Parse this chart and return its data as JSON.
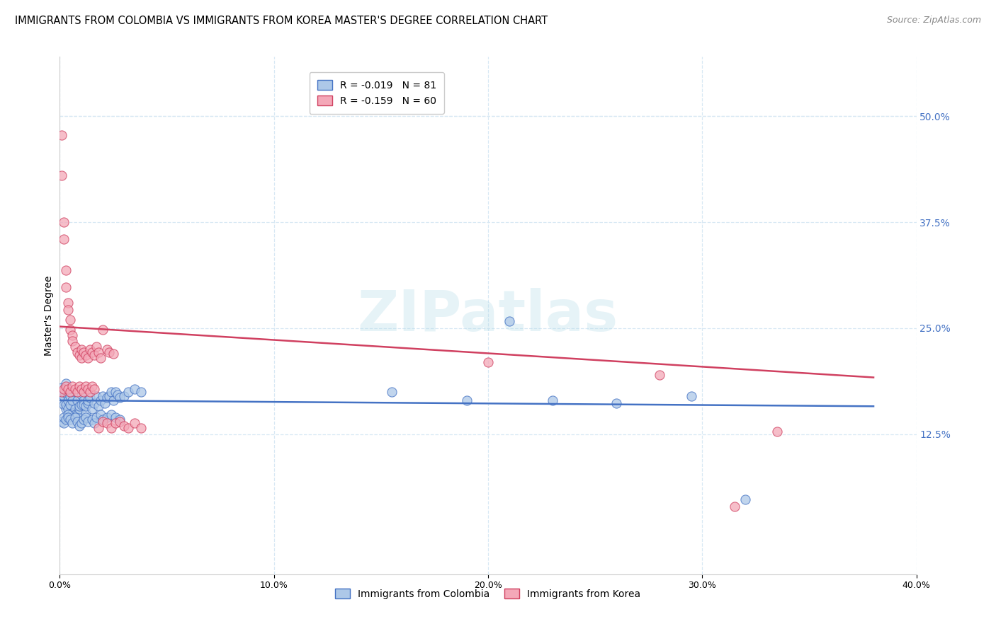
{
  "title": "IMMIGRANTS FROM COLOMBIA VS IMMIGRANTS FROM KOREA MASTER'S DEGREE CORRELATION CHART",
  "source": "Source: ZipAtlas.com",
  "ylabel": "Master's Degree",
  "colombia_R": -0.019,
  "colombia_N": 81,
  "korea_R": -0.159,
  "korea_N": 60,
  "colombia_color": "#adc8e8",
  "korea_color": "#f4a8b8",
  "colombia_line_color": "#4472c4",
  "korea_line_color": "#d04060",
  "right_axis_color": "#4472c4",
  "xmin": 0.0,
  "xmax": 0.4,
  "ymin": -0.04,
  "ymax": 0.57,
  "right_yticks": [
    0.125,
    0.25,
    0.375,
    0.5
  ],
  "right_yticklabels": [
    "12.5%",
    "25.0%",
    "37.5%",
    "50.0%"
  ],
  "grid_color": "#d8e8f4",
  "colombia_x": [
    0.001,
    0.001,
    0.001,
    0.002,
    0.002,
    0.002,
    0.003,
    0.003,
    0.003,
    0.004,
    0.004,
    0.004,
    0.005,
    0.005,
    0.005,
    0.006,
    0.006,
    0.007,
    0.007,
    0.008,
    0.008,
    0.009,
    0.009,
    0.01,
    0.01,
    0.011,
    0.011,
    0.012,
    0.012,
    0.013,
    0.013,
    0.014,
    0.015,
    0.016,
    0.017,
    0.018,
    0.019,
    0.02,
    0.021,
    0.022,
    0.023,
    0.024,
    0.025,
    0.026,
    0.027,
    0.028,
    0.03,
    0.032,
    0.035,
    0.038,
    0.001,
    0.002,
    0.002,
    0.003,
    0.004,
    0.004,
    0.005,
    0.006,
    0.007,
    0.008,
    0.009,
    0.01,
    0.011,
    0.012,
    0.013,
    0.015,
    0.016,
    0.017,
    0.019,
    0.02,
    0.022,
    0.024,
    0.026,
    0.028,
    0.155,
    0.19,
    0.21,
    0.23,
    0.26,
    0.295,
    0.32
  ],
  "colombia_y": [
    0.175,
    0.18,
    0.165,
    0.17,
    0.16,
    0.175,
    0.185,
    0.155,
    0.16,
    0.17,
    0.165,
    0.155,
    0.175,
    0.16,
    0.17,
    0.15,
    0.165,
    0.155,
    0.148,
    0.165,
    0.148,
    0.155,
    0.158,
    0.16,
    0.172,
    0.165,
    0.16,
    0.15,
    0.158,
    0.162,
    0.165,
    0.168,
    0.155,
    0.162,
    0.17,
    0.158,
    0.165,
    0.17,
    0.162,
    0.168,
    0.17,
    0.175,
    0.165,
    0.175,
    0.172,
    0.168,
    0.17,
    0.175,
    0.178,
    0.175,
    0.14,
    0.138,
    0.145,
    0.142,
    0.148,
    0.145,
    0.142,
    0.138,
    0.145,
    0.14,
    0.135,
    0.138,
    0.142,
    0.145,
    0.14,
    0.142,
    0.138,
    0.145,
    0.148,
    0.142,
    0.145,
    0.148,
    0.145,
    0.142,
    0.175,
    0.165,
    0.258,
    0.165,
    0.162,
    0.17,
    0.048
  ],
  "korea_x": [
    0.001,
    0.001,
    0.002,
    0.002,
    0.003,
    0.003,
    0.004,
    0.004,
    0.005,
    0.005,
    0.006,
    0.006,
    0.007,
    0.008,
    0.009,
    0.01,
    0.01,
    0.011,
    0.012,
    0.013,
    0.014,
    0.015,
    0.016,
    0.017,
    0.018,
    0.019,
    0.02,
    0.022,
    0.023,
    0.025,
    0.001,
    0.002,
    0.003,
    0.004,
    0.005,
    0.006,
    0.007,
    0.008,
    0.009,
    0.01,
    0.011,
    0.012,
    0.013,
    0.014,
    0.015,
    0.016,
    0.018,
    0.02,
    0.022,
    0.024,
    0.026,
    0.028,
    0.03,
    0.032,
    0.035,
    0.038,
    0.2,
    0.28,
    0.315,
    0.335
  ],
  "korea_y": [
    0.478,
    0.43,
    0.375,
    0.355,
    0.318,
    0.298,
    0.28,
    0.272,
    0.26,
    0.248,
    0.242,
    0.235,
    0.228,
    0.222,
    0.218,
    0.225,
    0.215,
    0.222,
    0.218,
    0.215,
    0.225,
    0.222,
    0.218,
    0.228,
    0.222,
    0.215,
    0.248,
    0.225,
    0.222,
    0.22,
    0.175,
    0.178,
    0.182,
    0.178,
    0.175,
    0.182,
    0.178,
    0.175,
    0.182,
    0.178,
    0.175,
    0.182,
    0.178,
    0.175,
    0.182,
    0.178,
    0.132,
    0.14,
    0.138,
    0.132,
    0.138,
    0.14,
    0.135,
    0.132,
    0.138,
    0.132,
    0.21,
    0.195,
    0.04,
    0.128
  ],
  "colombia_trend_x": [
    0.0,
    0.38
  ],
  "colombia_trend_y": [
    0.165,
    0.158
  ],
  "korea_trend_x": [
    0.0,
    0.38
  ],
  "korea_trend_y": [
    0.252,
    0.192
  ],
  "x_ticks": [
    0.0,
    0.1,
    0.2,
    0.3,
    0.4
  ],
  "x_tick_labels": [
    "0.0%",
    "10.0%",
    "20.0%",
    "30.0%",
    "40.0%"
  ],
  "title_fontsize": 10.5,
  "source_fontsize": 9,
  "legend_fontsize": 10,
  "axis_label_fontsize": 10,
  "tick_fontsize": 9,
  "watermark_text": "ZIPatlas"
}
